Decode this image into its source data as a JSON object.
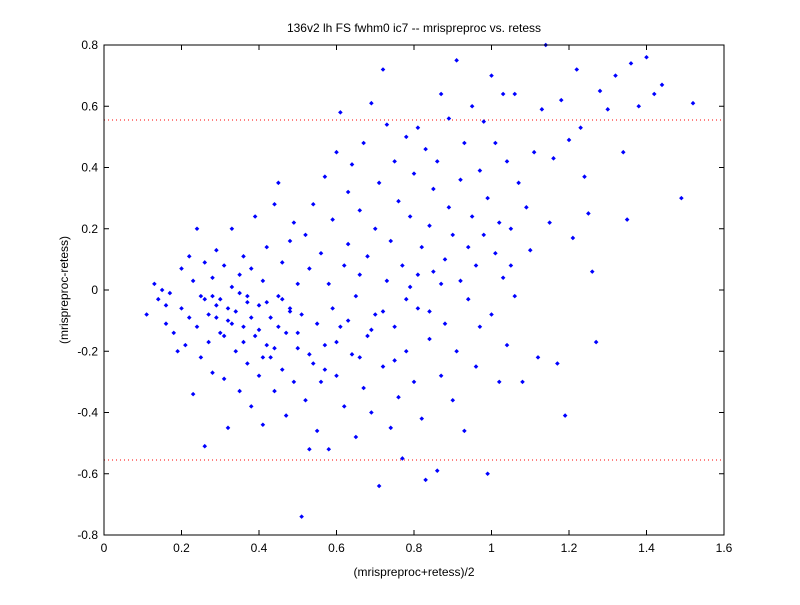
{
  "chart_data": {
    "type": "scatter",
    "title": "136v2 lh FS fwhm0 ic7 -- mrispreproc vs. retess",
    "xlabel": "(mrispreproc+retess)/2",
    "ylabel": "(mrispreproc-retess)",
    "xlim": [
      0,
      1.6
    ],
    "ylim": [
      -0.8,
      0.8
    ],
    "x_ticks": [
      0,
      0.2,
      0.4,
      0.6,
      0.8,
      1,
      1.2,
      1.4,
      1.6
    ],
    "x_tick_labels": [
      "0",
      "0.2",
      "0.4",
      "0.6",
      "0.8",
      "1",
      "1.2",
      "1.4",
      "1.6"
    ],
    "y_ticks": [
      -0.8,
      -0.6,
      -0.4,
      -0.2,
      0,
      0.2,
      0.4,
      0.6,
      0.8
    ],
    "y_tick_labels": [
      "-0.8",
      "-0.6",
      "-0.4",
      "-0.2",
      "0",
      "0.2",
      "0.4",
      "0.6",
      "0.8"
    ],
    "grid": false,
    "marker_color": "#0000ff",
    "reference_line_color": "#ff0000",
    "reference_lines": [
      0.555,
      -0.555
    ],
    "series": [
      {
        "points": [
          [
            0.11,
            -0.08
          ],
          [
            0.13,
            0.02
          ],
          [
            0.14,
            -0.03
          ],
          [
            0.15,
            0.0
          ],
          [
            0.16,
            -0.05
          ],
          [
            0.16,
            -0.11
          ],
          [
            0.17,
            -0.01
          ],
          [
            0.18,
            -0.14
          ],
          [
            0.19,
            -0.2
          ],
          [
            0.2,
            0.07
          ],
          [
            0.2,
            -0.06
          ],
          [
            0.21,
            -0.18
          ],
          [
            0.22,
            0.11
          ],
          [
            0.22,
            -0.09
          ],
          [
            0.23,
            0.03
          ],
          [
            0.23,
            -0.34
          ],
          [
            0.24,
            0.2
          ],
          [
            0.24,
            -0.12
          ],
          [
            0.25,
            -0.02
          ],
          [
            0.25,
            -0.22
          ],
          [
            0.26,
            -0.51
          ],
          [
            0.26,
            0.09
          ],
          [
            0.27,
            -0.08
          ],
          [
            0.27,
            -0.17
          ],
          [
            0.28,
            0.04
          ],
          [
            0.28,
            -0.27
          ],
          [
            0.29,
            -0.05
          ],
          [
            0.29,
            0.13
          ],
          [
            0.3,
            -0.14
          ],
          [
            0.3,
            -0.03
          ],
          [
            0.31,
            0.08
          ],
          [
            0.31,
            -0.29
          ],
          [
            0.32,
            -0.1
          ],
          [
            0.32,
            -0.45
          ],
          [
            0.33,
            0.01
          ],
          [
            0.33,
            0.2
          ],
          [
            0.34,
            -0.2
          ],
          [
            0.34,
            -0.07
          ],
          [
            0.35,
            0.05
          ],
          [
            0.35,
            -0.33
          ],
          [
            0.36,
            -0.12
          ],
          [
            0.36,
            0.11
          ],
          [
            0.37,
            -0.24
          ],
          [
            0.37,
            -0.02
          ],
          [
            0.38,
            -0.38
          ],
          [
            0.38,
            0.07
          ],
          [
            0.39,
            -0.15
          ],
          [
            0.39,
            0.24
          ],
          [
            0.4,
            -0.05
          ],
          [
            0.4,
            -0.28
          ],
          [
            0.41,
            0.03
          ],
          [
            0.41,
            -0.44
          ],
          [
            0.42,
            -0.18
          ],
          [
            0.42,
            0.14
          ],
          [
            0.43,
            -0.09
          ],
          [
            0.43,
            -0.22
          ],
          [
            0.44,
            0.28
          ],
          [
            0.44,
            -0.33
          ],
          [
            0.45,
            -0.02
          ],
          [
            0.45,
            0.35
          ],
          [
            0.46,
            -0.26
          ],
          [
            0.46,
            0.09
          ],
          [
            0.47,
            -0.14
          ],
          [
            0.47,
            -0.41
          ],
          [
            0.48,
            0.16
          ],
          [
            0.48,
            -0.06
          ],
          [
            0.49,
            -0.3
          ],
          [
            0.49,
            0.22
          ],
          [
            0.5,
            -0.19
          ],
          [
            0.5,
            0.02
          ],
          [
            0.51,
            -0.74
          ],
          [
            0.51,
            -0.08
          ],
          [
            0.52,
            0.18
          ],
          [
            0.52,
            -0.36
          ],
          [
            0.53,
            -0.52
          ],
          [
            0.53,
            0.07
          ],
          [
            0.54,
            -0.24
          ],
          [
            0.54,
            0.28
          ],
          [
            0.55,
            -0.11
          ],
          [
            0.55,
            -0.46
          ],
          [
            0.56,
            0.12
          ],
          [
            0.56,
            -0.3
          ],
          [
            0.57,
            0.37
          ],
          [
            0.57,
            -0.18
          ],
          [
            0.58,
            0.02
          ],
          [
            0.58,
            -0.52
          ],
          [
            0.59,
            0.23
          ],
          [
            0.59,
            -0.06
          ],
          [
            0.6,
            0.45
          ],
          [
            0.6,
            -0.28
          ],
          [
            0.61,
            0.58
          ],
          [
            0.61,
            -0.12
          ],
          [
            0.62,
            0.08
          ],
          [
            0.62,
            -0.38
          ],
          [
            0.63,
            0.32
          ],
          [
            0.63,
            0.15
          ],
          [
            0.64,
            -0.21
          ],
          [
            0.64,
            0.41
          ],
          [
            0.65,
            -0.02
          ],
          [
            0.65,
            -0.48
          ],
          [
            0.66,
            0.26
          ],
          [
            0.66,
            0.05
          ],
          [
            0.67,
            -0.32
          ],
          [
            0.67,
            0.48
          ],
          [
            0.68,
            0.11
          ],
          [
            0.68,
            -0.15
          ],
          [
            0.69,
            0.61
          ],
          [
            0.69,
            -0.4
          ],
          [
            0.7,
            0.2
          ],
          [
            0.7,
            -0.08
          ],
          [
            0.71,
            -0.64
          ],
          [
            0.71,
            0.35
          ],
          [
            0.72,
            0.72
          ],
          [
            0.72,
            -0.25
          ],
          [
            0.73,
            0.03
          ],
          [
            0.73,
            0.54
          ],
          [
            0.74,
            -0.45
          ],
          [
            0.74,
            0.16
          ],
          [
            0.75,
            0.42
          ],
          [
            0.75,
            -0.12
          ],
          [
            0.76,
            0.29
          ],
          [
            0.76,
            -0.35
          ],
          [
            0.77,
            0.08
          ],
          [
            0.77,
            -0.55
          ],
          [
            0.78,
            0.5
          ],
          [
            0.78,
            -0.2
          ],
          [
            0.79,
            0.24
          ],
          [
            0.79,
            0.01
          ],
          [
            0.8,
            0.38
          ],
          [
            0.8,
            -0.3
          ],
          [
            0.81,
            0.53
          ],
          [
            0.81,
            -0.06
          ],
          [
            0.82,
            0.14
          ],
          [
            0.82,
            -0.42
          ],
          [
            0.83,
            0.46
          ],
          [
            0.83,
            -0.62
          ],
          [
            0.84,
            0.21
          ],
          [
            0.84,
            -0.16
          ],
          [
            0.85,
            0.33
          ],
          [
            0.85,
            0.06
          ],
          [
            0.86,
            -0.59
          ],
          [
            0.86,
            0.42
          ],
          [
            0.87,
            -0.28
          ],
          [
            0.87,
            0.64
          ],
          [
            0.88,
            0.1
          ],
          [
            0.88,
            -0.11
          ],
          [
            0.89,
            0.27
          ],
          [
            0.89,
            0.56
          ],
          [
            0.9,
            -0.36
          ],
          [
            0.9,
            0.18
          ],
          [
            0.91,
            0.75
          ],
          [
            0.91,
            -0.2
          ],
          [
            0.92,
            0.36
          ],
          [
            0.92,
            0.03
          ],
          [
            0.93,
            -0.46
          ],
          [
            0.93,
            0.48
          ],
          [
            0.94,
            0.14
          ],
          [
            0.94,
            -0.03
          ],
          [
            0.95,
            0.24
          ],
          [
            0.95,
            0.6
          ],
          [
            0.96,
            -0.25
          ],
          [
            0.96,
            0.08
          ],
          [
            0.97,
            0.39
          ],
          [
            0.97,
            -0.12
          ],
          [
            0.98,
            0.18
          ],
          [
            0.98,
            0.55
          ],
          [
            0.99,
            -0.6
          ],
          [
            0.99,
            0.3
          ],
          [
            1.0,
            0.7
          ],
          [
            1.0,
            -0.08
          ],
          [
            1.01,
            0.48
          ],
          [
            1.01,
            0.12
          ],
          [
            1.02,
            0.22
          ],
          [
            1.02,
            -0.3
          ],
          [
            1.03,
            0.64
          ],
          [
            1.03,
            0.04
          ],
          [
            1.04,
            0.42
          ],
          [
            1.04,
            -0.18
          ],
          [
            1.05,
            0.2
          ],
          [
            1.05,
            0.08
          ],
          [
            1.06,
            -0.02
          ],
          [
            1.06,
            0.64
          ],
          [
            1.07,
            0.35
          ],
          [
            1.08,
            -0.3
          ],
          [
            1.09,
            0.27
          ],
          [
            1.1,
            0.13
          ],
          [
            1.11,
            0.45
          ],
          [
            1.12,
            -0.22
          ],
          [
            1.13,
            0.59
          ],
          [
            1.14,
            0.8
          ],
          [
            1.15,
            0.22
          ],
          [
            1.16,
            0.43
          ],
          [
            1.17,
            -0.24
          ],
          [
            1.18,
            0.62
          ],
          [
            1.19,
            -0.41
          ],
          [
            1.2,
            0.49
          ],
          [
            1.21,
            0.17
          ],
          [
            1.22,
            0.72
          ],
          [
            1.23,
            0.53
          ],
          [
            1.24,
            0.37
          ],
          [
            1.25,
            0.25
          ],
          [
            1.26,
            0.06
          ],
          [
            1.27,
            -0.17
          ],
          [
            1.28,
            0.65
          ],
          [
            1.3,
            0.59
          ],
          [
            1.32,
            0.7
          ],
          [
            1.34,
            0.45
          ],
          [
            1.35,
            0.23
          ],
          [
            1.36,
            0.74
          ],
          [
            1.38,
            0.6
          ],
          [
            1.4,
            0.76
          ],
          [
            1.42,
            0.64
          ],
          [
            1.44,
            0.67
          ],
          [
            1.49,
            0.3
          ],
          [
            1.52,
            0.61
          ],
          [
            0.28,
            -0.02
          ],
          [
            0.32,
            -0.06
          ],
          [
            0.35,
            -0.01
          ],
          [
            0.38,
            -0.09
          ],
          [
            0.42,
            -0.04
          ],
          [
            0.45,
            -0.12
          ],
          [
            0.48,
            -0.07
          ],
          [
            0.36,
            -0.17
          ],
          [
            0.4,
            -0.13
          ],
          [
            0.33,
            -0.11
          ],
          [
            0.44,
            -0.19
          ],
          [
            0.29,
            -0.09
          ],
          [
            0.31,
            -0.15
          ],
          [
            0.37,
            -0.04
          ],
          [
            0.41,
            -0.22
          ],
          [
            0.26,
            -0.03
          ],
          [
            0.46,
            -0.03
          ],
          [
            0.5,
            -0.14
          ],
          [
            0.53,
            -0.21
          ],
          [
            0.57,
            -0.26
          ],
          [
            0.6,
            -0.17
          ],
          [
            0.63,
            -0.1
          ],
          [
            0.66,
            -0.22
          ],
          [
            0.69,
            -0.13
          ],
          [
            0.72,
            -0.07
          ],
          [
            0.75,
            -0.23
          ],
          [
            0.78,
            -0.03
          ],
          [
            0.81,
            0.05
          ],
          [
            0.84,
            -0.07
          ],
          [
            0.87,
            0.02
          ]
        ]
      }
    ]
  }
}
